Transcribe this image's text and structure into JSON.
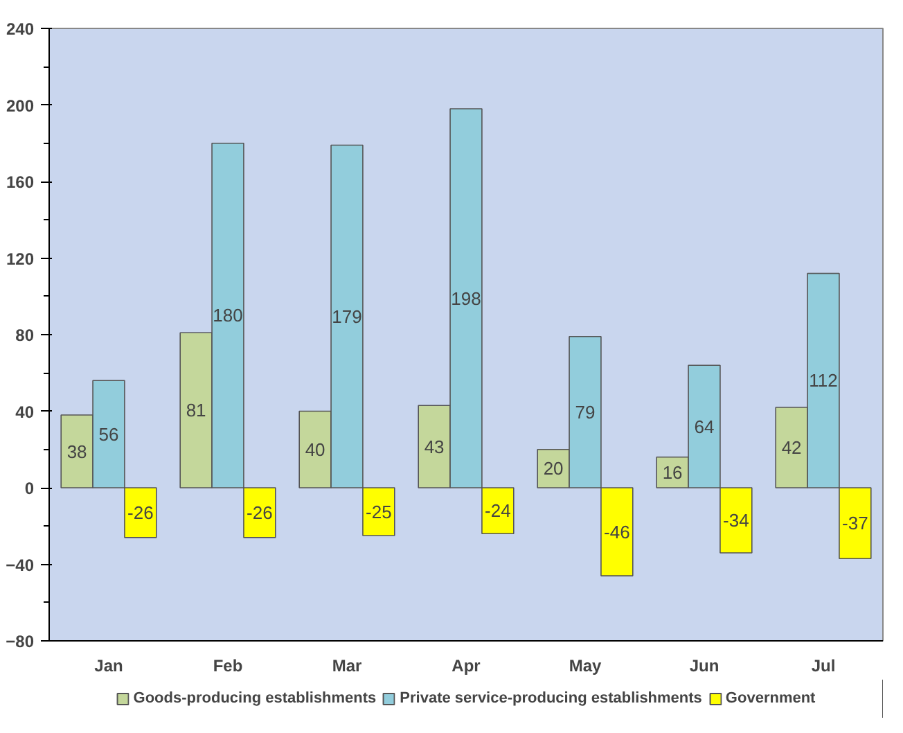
{
  "chart_data": {
    "type": "bar",
    "categories": [
      "Jan",
      "Feb",
      "Mar",
      "Apr",
      "May",
      "Jun",
      "Jul"
    ],
    "series": [
      {
        "name": "Goods-producing establishments",
        "color": "#c4d79b",
        "values": [
          38,
          81,
          40,
          43,
          20,
          16,
          42
        ]
      },
      {
        "name": "Private service-producing establishments",
        "color": "#92cddc",
        "values": [
          56,
          180,
          179,
          198,
          79,
          64,
          112
        ]
      },
      {
        "name": "Government",
        "color": "#ffff00",
        "values": [
          -26,
          -26,
          -25,
          -24,
          -46,
          -34,
          -37
        ]
      }
    ],
    "ylim": [
      -80,
      240
    ],
    "yticks": [
      -80,
      -40,
      0,
      40,
      80,
      120,
      160,
      200,
      240
    ],
    "data_labels": true,
    "legend": "bottom",
    "grid": false
  }
}
